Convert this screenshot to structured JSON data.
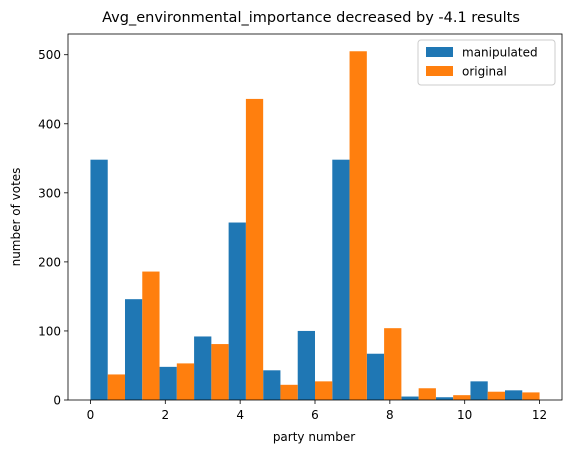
{
  "chart_data": {
    "type": "bar",
    "title": "Avg_environmental_importance decreased by -4.1 results",
    "xlabel": "party number",
    "ylabel": "number of votes",
    "xlim": [
      -0.6,
      12.6
    ],
    "ylim": [
      0,
      530
    ],
    "xticks": [
      0,
      2,
      4,
      6,
      8,
      10,
      12
    ],
    "yticks": [
      0,
      100,
      200,
      300,
      400,
      500
    ],
    "bin_edges": [
      0,
      0.923,
      1.846,
      2.769,
      3.692,
      4.615,
      5.538,
      6.462,
      7.385,
      8.308,
      9.231,
      10.154,
      11.077,
      12
    ],
    "grid": false,
    "legend_position": "top-right",
    "series": [
      {
        "name": "manipulated",
        "color": "#1f77b4",
        "values": [
          348,
          146,
          48,
          92,
          257,
          43,
          100,
          348,
          67,
          5,
          4,
          27,
          14
        ]
      },
      {
        "name": "original",
        "color": "#ff7f0e",
        "values": [
          37,
          186,
          53,
          81,
          436,
          22,
          27,
          505,
          104,
          17,
          7,
          12,
          11
        ]
      }
    ]
  }
}
